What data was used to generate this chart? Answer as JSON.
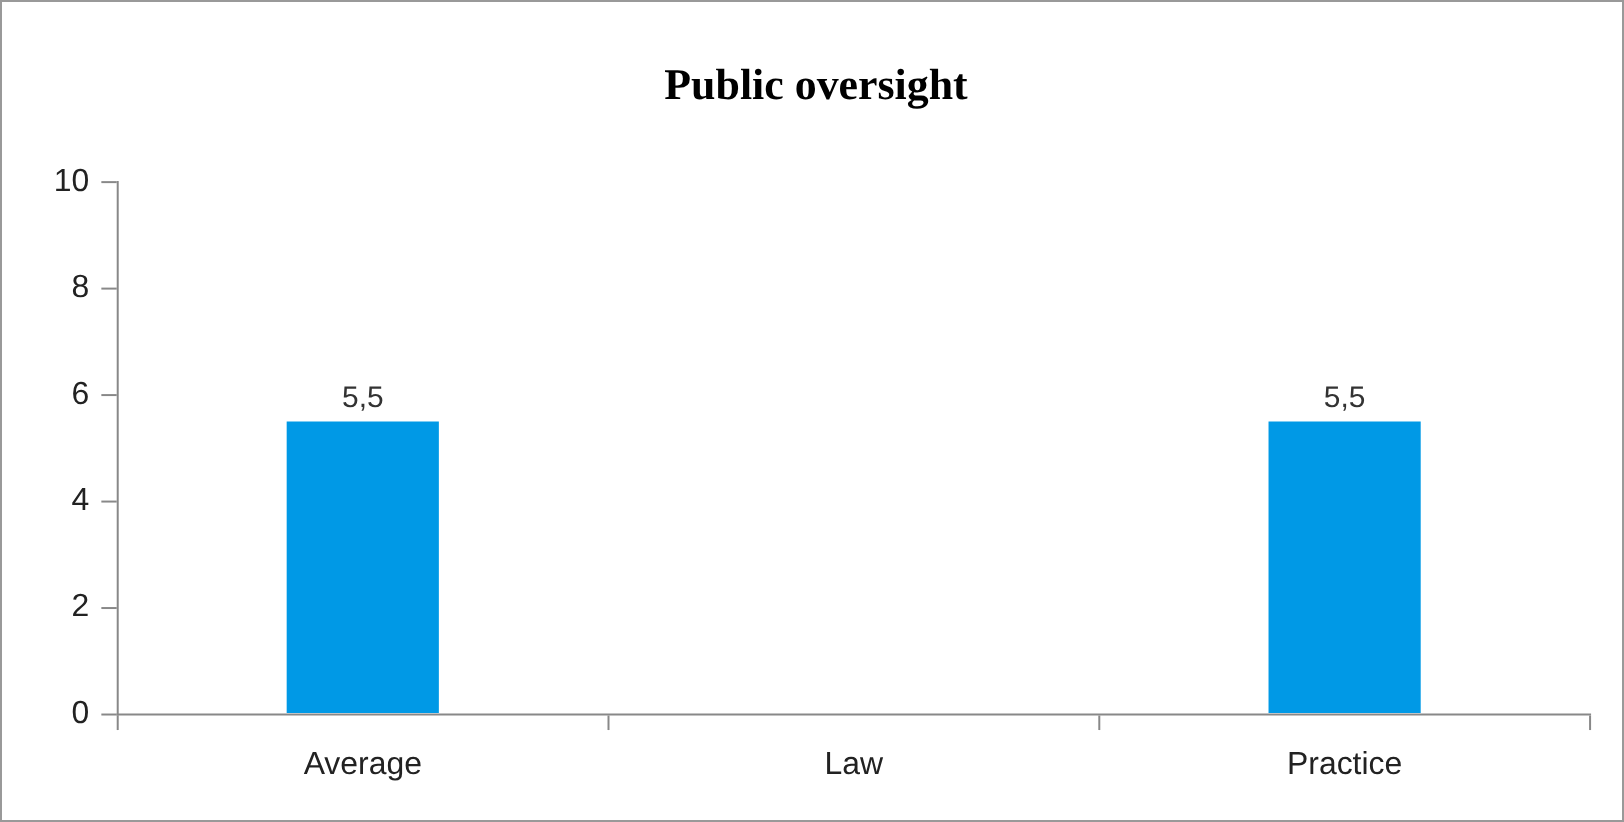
{
  "chart_data": {
    "type": "bar",
    "title": "Public oversight",
    "categories": [
      "Average",
      "Law",
      "Practice"
    ],
    "values": [
      5.5,
      null,
      5.5
    ],
    "value_labels": [
      "5,5",
      null,
      "5,5"
    ],
    "color": "#0099e6",
    "ylim": [
      0,
      10
    ],
    "yticks": [
      0,
      2,
      4,
      6,
      8,
      10
    ],
    "grid": false,
    "legend": false
  }
}
